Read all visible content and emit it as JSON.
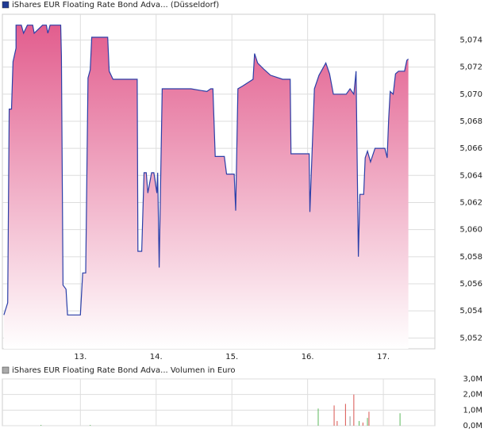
{
  "chart_data": [
    {
      "type": "area",
      "legend_label": "iShares EUR Floating Rate Bond Adva... (Düsseldorf)",
      "legend_color": "#1f3a93",
      "x": [
        11.99,
        12.04,
        12.06,
        12.09,
        12.11,
        12.15,
        12.15,
        12.22,
        12.25,
        12.3,
        12.37,
        12.39,
        12.5,
        12.55,
        12.57,
        12.6,
        12.74,
        12.75,
        12.77,
        12.81,
        12.83,
        13.0,
        13.03,
        13.07,
        13.1,
        13.13,
        13.15,
        13.36,
        13.38,
        13.43,
        13.75,
        13.76,
        13.81,
        13.84,
        13.87,
        13.89,
        13.94,
        13.97,
        14.01,
        14.02,
        14.04,
        14.08,
        14.36,
        14.46,
        14.67,
        14.72,
        14.75,
        14.78,
        14.9,
        14.93,
        15.03,
        15.05,
        15.08,
        15.14,
        15.28,
        15.3,
        15.34,
        15.43,
        15.51,
        15.67,
        15.77,
        15.78,
        16.02,
        16.03,
        16.09,
        16.15,
        16.24,
        16.29,
        16.34,
        16.51,
        16.56,
        16.61,
        16.64,
        16.67,
        16.69,
        16.74,
        16.76,
        16.79,
        16.83,
        16.89,
        17.02,
        17.05,
        17.07,
        17.09,
        17.13,
        17.16,
        17.2,
        17.28,
        17.31,
        17.33
      ],
      "series": [
        {
          "color": "#2b3fa8",
          "fill_color": "#e1588a",
          "values": [
            5.0537,
            5.0546,
            5.0689,
            5.0689,
            5.0724,
            5.0734,
            5.0751,
            5.0751,
            5.0745,
            5.0751,
            5.0751,
            5.0745,
            5.0751,
            5.0751,
            5.0745,
            5.0751,
            5.0751,
            5.0728,
            5.0559,
            5.0556,
            5.0537,
            5.0537,
            5.0568,
            5.0568,
            5.0712,
            5.0718,
            5.0742,
            5.0742,
            5.0717,
            5.0711,
            5.0711,
            5.0584,
            5.0584,
            5.0642,
            5.0642,
            5.0627,
            5.0642,
            5.0642,
            5.0627,
            5.0642,
            5.0572,
            5.0704,
            5.0704,
            5.0704,
            5.0702,
            5.0704,
            5.0704,
            5.0654,
            5.0654,
            5.0641,
            5.0641,
            5.0614,
            5.0704,
            5.0706,
            5.0711,
            5.073,
            5.0723,
            5.0718,
            5.0714,
            5.0711,
            5.0711,
            5.0656,
            5.0656,
            5.0613,
            5.0704,
            5.0714,
            5.0723,
            5.0715,
            5.07,
            5.07,
            5.0704,
            5.07,
            5.0717,
            5.058,
            5.0626,
            5.0626,
            5.0653,
            5.0658,
            5.065,
            5.066,
            5.066,
            5.0653,
            5.0682,
            5.0702,
            5.07,
            5.0715,
            5.0717,
            5.0717,
            5.0725,
            5.0726
          ]
        }
      ],
      "xlim": [
        11.97,
        17.68
      ],
      "xticks": [
        {
          "value": 13,
          "label": "13."
        },
        {
          "value": 14,
          "label": "14."
        },
        {
          "value": 15,
          "label": "15."
        },
        {
          "value": 16,
          "label": "16."
        },
        {
          "value": 17,
          "label": "17."
        }
      ],
      "ylim": [
        5.0512,
        5.0759
      ],
      "yticks": [
        {
          "value": 5.052,
          "label": "5,052"
        },
        {
          "value": 5.054,
          "label": "5,054"
        },
        {
          "value": 5.056,
          "label": "5,056"
        },
        {
          "value": 5.058,
          "label": "5,058"
        },
        {
          "value": 5.06,
          "label": "5,060"
        },
        {
          "value": 5.062,
          "label": "5,062"
        },
        {
          "value": 5.064,
          "label": "5,064"
        },
        {
          "value": 5.066,
          "label": "5,066"
        },
        {
          "value": 5.068,
          "label": "5,068"
        },
        {
          "value": 5.07,
          "label": "5,070"
        },
        {
          "value": 5.072,
          "label": "5,072"
        },
        {
          "value": 5.074,
          "label": "5,074"
        }
      ],
      "grid": true
    },
    {
      "type": "bar",
      "legend_label": "iShares EUR Floating Rate Bond Adva... Volumen in Euro",
      "legend_color": "#aaaaaa",
      "x": [
        12.48,
        13.13,
        16.14,
        16.35,
        16.39,
        16.5,
        16.56,
        16.61,
        16.68,
        16.73,
        16.79,
        16.81,
        17.22
      ],
      "values": [
        0.05,
        0.05,
        1.1,
        1.3,
        0.3,
        1.4,
        0.6,
        2.0,
        0.3,
        0.2,
        0.5,
        0.9,
        0.8
      ],
      "colors": [
        "#5cb85c",
        "#5cb85c",
        "#5cb85c",
        "#d9534f",
        "#d9534f",
        "#d9534f",
        "#999999",
        "#d9534f",
        "#5cb85c",
        "#d9534f",
        "#5cb85c",
        "#d9534f",
        "#5cb85c"
      ],
      "xlim": [
        11.97,
        17.68
      ],
      "xticks": [
        13,
        14,
        15,
        16,
        17
      ],
      "ylim": [
        0,
        3
      ],
      "yticks": [
        {
          "value": 0,
          "label": "0,0M"
        },
        {
          "value": 1,
          "label": "1,0M"
        },
        {
          "value": 2,
          "label": "2,0M"
        },
        {
          "value": 3,
          "label": "3,0M"
        }
      ],
      "grid": true
    }
  ]
}
